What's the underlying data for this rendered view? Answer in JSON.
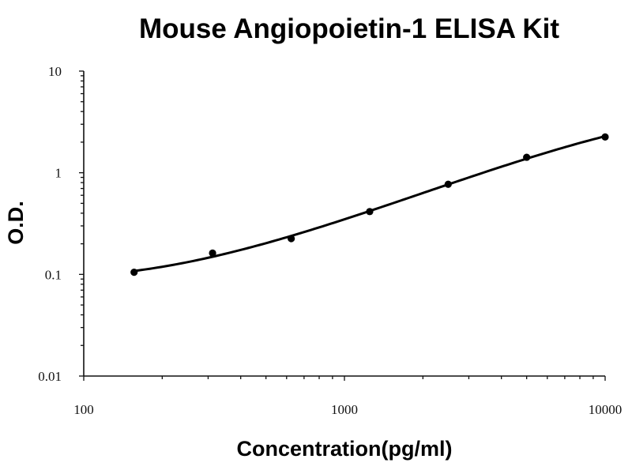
{
  "chart_data": {
    "type": "scatter",
    "title": "Mouse Angiopoietin-1 ELISA Kit",
    "xlabel": "Concentration(pg/ml)",
    "ylabel": "O.D.",
    "x_scale": "log",
    "y_scale": "log",
    "xlim": [
      100,
      10000
    ],
    "ylim": [
      0.01,
      10
    ],
    "x_ticks": [
      {
        "value": 100,
        "label": "100"
      },
      {
        "value": 1000,
        "label": "1000"
      },
      {
        "value": 10000,
        "label": "10000"
      }
    ],
    "y_ticks": [
      {
        "value": 0.01,
        "label": "0.01"
      },
      {
        "value": 0.1,
        "label": "0.1"
      },
      {
        "value": 1,
        "label": "1"
      },
      {
        "value": 10,
        "label": "10"
      }
    ],
    "grid": false,
    "legend": "none",
    "series": [
      {
        "x": [
          156,
          312,
          625,
          1250,
          2500,
          5000,
          10000
        ],
        "y": [
          0.105,
          0.162,
          0.225,
          0.415,
          0.77,
          1.42,
          2.25
        ],
        "color": "#000000",
        "fit_curve": true
      }
    ]
  }
}
